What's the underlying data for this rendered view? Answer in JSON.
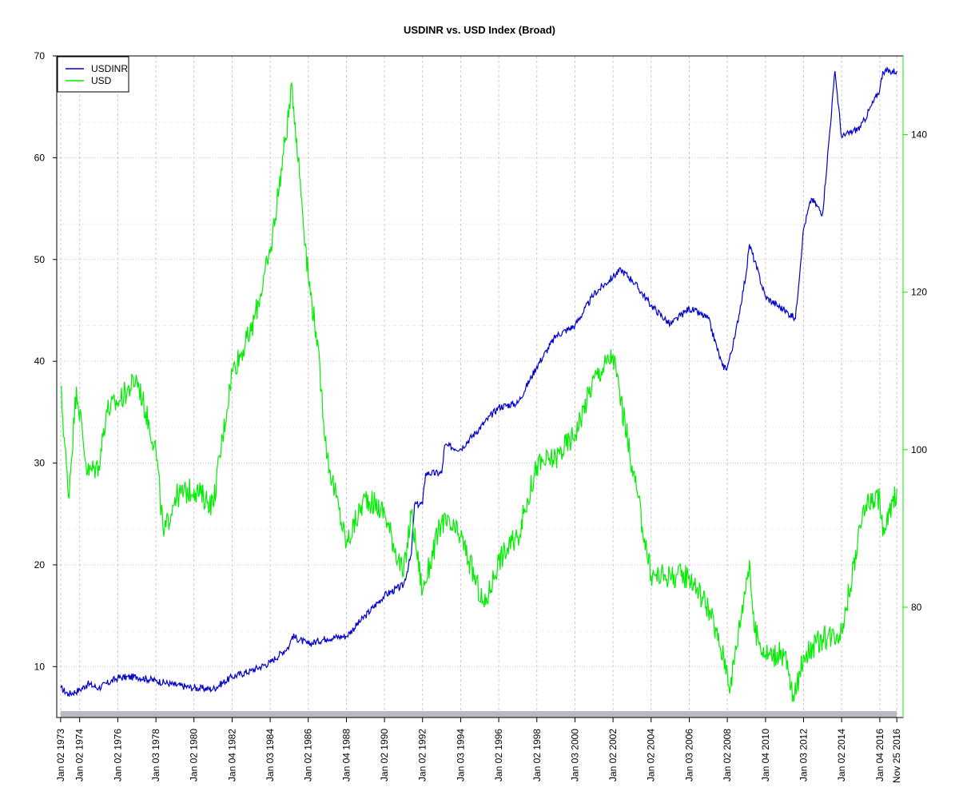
{
  "chart_data": {
    "type": "line",
    "title": "USDINR vs. USD Index (Broad)",
    "xlabel": "",
    "ylabel": "",
    "grid": true,
    "legend_position": "top-left",
    "x_range": [
      "1973-01-02",
      "2016-11-25"
    ],
    "y_left_range": [
      5,
      70
    ],
    "y_right_range": [
      66,
      150
    ],
    "y_left_ticks": [
      10,
      20,
      30,
      40,
      50,
      60,
      70
    ],
    "y_right_ticks": [
      80,
      100,
      120,
      140
    ],
    "x_ticks": [
      {
        "date": "1973-01-02",
        "label": "Jan 02 1973"
      },
      {
        "date": "1974-01-02",
        "label": "Jan 02 1974"
      },
      {
        "date": "1976-01-02",
        "label": "Jan 02 1976"
      },
      {
        "date": "1978-01-03",
        "label": "Jan 03 1978"
      },
      {
        "date": "1980-01-02",
        "label": "Jan 02 1980"
      },
      {
        "date": "1982-01-04",
        "label": "Jan 04 1982"
      },
      {
        "date": "1984-01-03",
        "label": "Jan 03 1984"
      },
      {
        "date": "1986-01-02",
        "label": "Jan 02 1986"
      },
      {
        "date": "1988-01-04",
        "label": "Jan 04 1988"
      },
      {
        "date": "1990-01-02",
        "label": "Jan 02 1990"
      },
      {
        "date": "1992-01-02",
        "label": "Jan 02 1992"
      },
      {
        "date": "1994-01-03",
        "label": "Jan 03 1994"
      },
      {
        "date": "1996-01-02",
        "label": "Jan 02 1996"
      },
      {
        "date": "1998-01-02",
        "label": "Jan 02 1998"
      },
      {
        "date": "2000-01-03",
        "label": "Jan 03 2000"
      },
      {
        "date": "2002-01-02",
        "label": "Jan 02 2002"
      },
      {
        "date": "2004-01-02",
        "label": "Jan 02 2004"
      },
      {
        "date": "2006-01-03",
        "label": "Jan 03 2006"
      },
      {
        "date": "2008-01-02",
        "label": "Jan 02 2008"
      },
      {
        "date": "2010-01-04",
        "label": "Jan 04 2010"
      },
      {
        "date": "2012-01-03",
        "label": "Jan 03 2012"
      },
      {
        "date": "2014-01-02",
        "label": "Jan 02 2014"
      },
      {
        "date": "2016-01-04",
        "label": "Jan 04 2016"
      },
      {
        "date": "2016-11-25",
        "label": "Nov 25 2016"
      }
    ],
    "series": [
      {
        "name": "USDINR",
        "color": "#0000cd",
        "axis": "left",
        "points": [
          [
            "1973-01-02",
            7.9
          ],
          [
            "1973-06-01",
            7.3
          ],
          [
            "1974-01-02",
            7.7
          ],
          [
            "1974-06-01",
            8.3
          ],
          [
            "1975-01-02",
            7.9
          ],
          [
            "1976-01-02",
            8.9
          ],
          [
            "1977-01-02",
            9.0
          ],
          [
            "1978-01-03",
            8.6
          ],
          [
            "1979-01-02",
            8.2
          ],
          [
            "1980-01-02",
            7.9
          ],
          [
            "1981-01-02",
            7.8
          ],
          [
            "1982-01-04",
            9.0
          ],
          [
            "1983-01-03",
            9.6
          ],
          [
            "1984-01-03",
            10.4
          ],
          [
            "1985-01-02",
            12.0
          ],
          [
            "1985-03-01",
            13.0
          ],
          [
            "1986-01-02",
            12.2
          ],
          [
            "1987-01-02",
            12.8
          ],
          [
            "1988-01-04",
            13.0
          ],
          [
            "1989-01-03",
            15.0
          ],
          [
            "1990-01-02",
            17.0
          ],
          [
            "1991-01-02",
            18.0
          ],
          [
            "1991-06-01",
            21.0
          ],
          [
            "1991-08-01",
            25.9
          ],
          [
            "1992-01-02",
            26.0
          ],
          [
            "1992-03-01",
            29.0
          ],
          [
            "1993-01-04",
            29.0
          ],
          [
            "1993-03-01",
            31.7
          ],
          [
            "1994-01-03",
            31.4
          ],
          [
            "1996-01-02",
            35.5
          ],
          [
            "1997-01-02",
            35.9
          ],
          [
            "1998-01-02",
            39.5
          ],
          [
            "1999-01-04",
            42.5
          ],
          [
            "2000-01-03",
            43.5
          ],
          [
            "2001-01-02",
            46.6
          ],
          [
            "2002-01-02",
            48.3
          ],
          [
            "2002-06-01",
            49.0
          ],
          [
            "2003-01-02",
            48.0
          ],
          [
            "2004-01-02",
            45.5
          ],
          [
            "2005-01-03",
            43.6
          ],
          [
            "2006-01-03",
            45.2
          ],
          [
            "2007-01-02",
            44.2
          ],
          [
            "2007-10-01",
            39.5
          ],
          [
            "2008-01-02",
            39.4
          ],
          [
            "2008-06-01",
            42.5
          ],
          [
            "2009-01-02",
            48.8
          ],
          [
            "2009-03-01",
            51.5
          ],
          [
            "2010-01-04",
            46.3
          ],
          [
            "2011-01-03",
            45.0
          ],
          [
            "2011-08-01",
            44.2
          ],
          [
            "2012-01-03",
            53.0
          ],
          [
            "2012-06-01",
            56.0
          ],
          [
            "2013-01-02",
            54.5
          ],
          [
            "2013-08-28",
            68.5
          ],
          [
            "2014-01-02",
            62.0
          ],
          [
            "2015-01-02",
            63.0
          ],
          [
            "2016-01-04",
            66.7
          ],
          [
            "2016-03-01",
            68.5
          ],
          [
            "2016-11-25",
            68.5
          ]
        ]
      },
      {
        "name": "USD",
        "color": "#00ee00",
        "axis": "right",
        "points": [
          [
            "1973-01-02",
            108
          ],
          [
            "1973-06-01",
            94
          ],
          [
            "1973-11-01",
            108
          ],
          [
            "1974-06-01",
            97
          ],
          [
            "1975-01-02",
            98
          ],
          [
            "1975-06-01",
            105
          ],
          [
            "1976-01-02",
            106
          ],
          [
            "1977-01-02",
            109
          ],
          [
            "1978-01-03",
            100
          ],
          [
            "1978-06-01",
            89
          ],
          [
            "1979-01-02",
            94
          ],
          [
            "1980-01-02",
            95
          ],
          [
            "1981-01-02",
            93
          ],
          [
            "1982-01-04",
            110
          ],
          [
            "1983-01-03",
            115
          ],
          [
            "1984-01-03",
            125
          ],
          [
            "1985-03-01",
            146
          ],
          [
            "1986-01-02",
            122
          ],
          [
            "1986-06-01",
            115
          ],
          [
            "1987-01-02",
            99
          ],
          [
            "1988-01-04",
            88
          ],
          [
            "1989-01-03",
            94
          ],
          [
            "1990-01-02",
            92
          ],
          [
            "1991-01-02",
            84
          ],
          [
            "1991-06-01",
            92
          ],
          [
            "1992-01-02",
            82
          ],
          [
            "1993-01-04",
            91
          ],
          [
            "1994-01-03",
            89
          ],
          [
            "1995-04-01",
            80
          ],
          [
            "1996-01-02",
            86
          ],
          [
            "1997-01-02",
            89
          ],
          [
            "1998-01-02",
            98
          ],
          [
            "1999-01-04",
            99
          ],
          [
            "2000-01-03",
            102
          ],
          [
            "2001-01-02",
            109
          ],
          [
            "2002-01-02",
            112
          ],
          [
            "2003-01-02",
            98
          ],
          [
            "2004-01-02",
            84
          ],
          [
            "2005-01-03",
            84
          ],
          [
            "2006-01-03",
            84
          ],
          [
            "2007-01-02",
            80
          ],
          [
            "2008-01-02",
            72
          ],
          [
            "2008-03-01",
            70
          ],
          [
            "2009-03-01",
            86
          ],
          [
            "2009-06-01",
            77
          ],
          [
            "2010-01-04",
            74
          ],
          [
            "2011-01-03",
            74
          ],
          [
            "2011-07-01",
            68
          ],
          [
            "2012-01-03",
            74
          ],
          [
            "2013-01-02",
            76
          ],
          [
            "2014-01-02",
            77
          ],
          [
            "2015-01-02",
            90
          ],
          [
            "2015-03-01",
            93
          ],
          [
            "2016-01-04",
            94
          ],
          [
            "2016-03-01",
            89
          ],
          [
            "2016-11-25",
            95
          ]
        ]
      }
    ]
  }
}
